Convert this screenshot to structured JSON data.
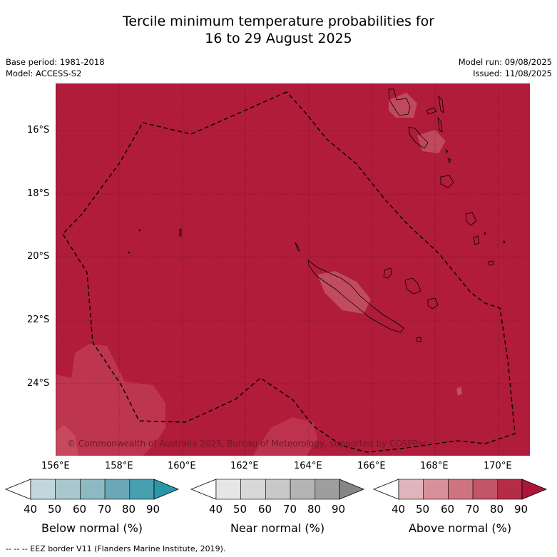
{
  "title_line1": "Tercile minimum temperature probabilities for",
  "title_line2": "16 to 29 August 2025",
  "base_period": "Base period: 1981-2018",
  "model": "Model: ACCESS-S2",
  "model_run": "Model run: 09/08/2025",
  "issued": "Issued: 11/08/2025",
  "lat_labels": [
    "16°S",
    "18°S",
    "20°S",
    "22°S",
    "24°S"
  ],
  "lon_labels": [
    "156°E",
    "158°E",
    "160°E",
    "162°E",
    "164°E",
    "166°E",
    "168°E",
    "170°E"
  ],
  "copyright": "© Commonwealth of Australia 2025, Bureau of Meteorology, supported by COSPPac",
  "colorbars": [
    {
      "label": "Below normal (%)",
      "ticks": [
        "40",
        "50",
        "60",
        "70",
        "80",
        "90"
      ],
      "colors": [
        "#c2d7dd",
        "#a8c8ce",
        "#8db9c2",
        "#6aa8b5",
        "#46a0b0",
        "#2a97a8"
      ]
    },
    {
      "label": "Near normal (%)",
      "ticks": [
        "40",
        "50",
        "60",
        "70",
        "80",
        "90"
      ],
      "colors": [
        "#e6e6e6",
        "#d8d8d8",
        "#c8c8c8",
        "#b4b4b4",
        "#9e9e9e",
        "#868686"
      ]
    },
    {
      "label": "Above normal (%)",
      "ticks": [
        "40",
        "50",
        "60",
        "70",
        "80",
        "90"
      ],
      "colors": [
        "#e0b4bb",
        "#d8919a",
        "#cd747f",
        "#c25568",
        "#b52c45",
        "#ad1638"
      ]
    }
  ],
  "map_fill_color": "#b01c39",
  "footer": "--  --  -- EEZ border V11 (Flanders Marine Institute, 2019)."
}
